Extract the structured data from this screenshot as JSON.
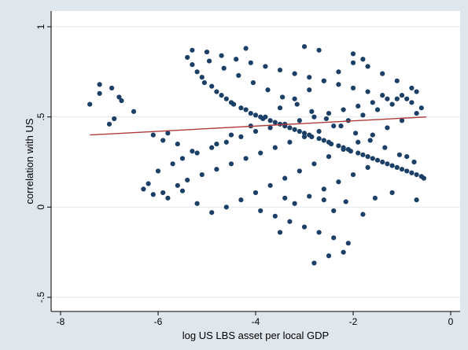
{
  "chart_data": {
    "type": "scatter",
    "title": "",
    "xlabel": "log US LBS asset per local GDP",
    "ylabel": "correlation with US",
    "xlim": [
      -8,
      0
    ],
    "ylim": [
      -0.5,
      1
    ],
    "x_ticks": [
      -8,
      -6,
      -4,
      -2,
      0
    ],
    "x_tick_labels": [
      "-8",
      "-6",
      "-4",
      "-2",
      "0"
    ],
    "y_ticks": [
      -0.5,
      0,
      0.5,
      1
    ],
    "y_tick_labels": [
      "-.5",
      "0",
      ".5",
      "1"
    ],
    "grid": "horizontal",
    "legend": "none",
    "colors": {
      "points": "#1b3f66",
      "fit_line": "#b03a3a",
      "plot_bg": "#ffffff",
      "outer_bg": "#dfe6ec",
      "grid": "#e3e9ef"
    },
    "fit_line": {
      "x": [
        -7.4,
        -0.5
      ],
      "y": [
        0.4,
        0.5
      ]
    },
    "series": [
      {
        "x": [
          -7.4,
          -7.2,
          -7.0,
          -6.9,
          -6.95,
          -6.8,
          -6.75,
          -6.5,
          -7.2,
          -6.1,
          -5.9,
          -5.8,
          -5.6,
          -5.4,
          -5.3,
          -5.2,
          -5.1,
          -5.05,
          -4.9,
          -4.8,
          -4.7,
          -4.6,
          -4.5,
          -4.45,
          -4.3,
          -4.2,
          -4.1,
          -4.0,
          -3.9,
          -3.85,
          -3.7,
          -3.6,
          -3.5,
          -3.4,
          -3.3,
          -3.2,
          -3.1,
          -3.0,
          -2.9,
          -2.85,
          -2.7,
          -2.6,
          -2.5,
          -2.45,
          -2.3,
          -2.2,
          -2.1,
          -2.05,
          -1.9,
          -1.8,
          -1.7,
          -1.6,
          -1.5,
          -1.4,
          -1.3,
          -1.2,
          -1.1,
          -1.0,
          -0.9,
          -0.8,
          -0.7,
          -0.6,
          -0.55,
          -5.2,
          -4.8,
          -4.5,
          -4.1,
          -3.8,
          -3.5,
          -3.2,
          -2.9,
          -2.6,
          -2.3,
          -2.0,
          -1.7,
          -1.4,
          -1.1,
          -0.8,
          -6.2,
          -6.0,
          -5.7,
          -5.5,
          -5.3,
          -4.9,
          -4.6,
          -4.3,
          -4.0,
          -3.7,
          -3.4,
          -3.1,
          -2.8,
          -2.5,
          -2.2,
          -1.9,
          -1.6,
          -1.3,
          -1.0,
          -0.7,
          -6.3,
          -6.1,
          -5.9,
          -5.6,
          -5.4,
          -5.1,
          -4.8,
          -4.5,
          -4.2,
          -3.9,
          -3.6,
          -3.3,
          -3.0,
          -2.7,
          -2.4,
          -2.1,
          -1.8,
          -1.5,
          -1.2,
          -0.9,
          -0.6,
          -5.0,
          -4.7,
          -4.4,
          -4.1,
          -3.8,
          -3.5,
          -3.2,
          -2.9,
          -2.6,
          -2.3,
          -2.0,
          -1.7,
          -1.4,
          -1.1,
          -0.8,
          -5.8,
          -5.5,
          -5.2,
          -4.9,
          -4.6,
          -4.3,
          -4.0,
          -3.7,
          -3.4,
          -3.1,
          -2.8,
          -2.5,
          -2.2,
          -1.9,
          -1.6,
          -1.3,
          -1.0,
          -0.7,
          -5.3,
          -4.95,
          -4.65,
          -4.35,
          -4.05,
          -3.75,
          -3.45,
          -3.15,
          -2.85,
          -2.55,
          -2.25,
          -1.95,
          -1.65,
          -1.35,
          -1.05,
          -0.75,
          -3.9,
          -3.6,
          -3.3,
          -3.0,
          -2.7,
          -2.4,
          -2.1,
          -1.8,
          -3.2,
          -2.9,
          -2.6,
          -2.3,
          -2.0,
          -1.7,
          -3.5,
          -2.8,
          -2.5,
          -2.2,
          -4.2,
          -3.0,
          -2.7,
          -2.0,
          -1.8,
          -3.4,
          -2.6,
          -2.4,
          -2.15,
          -1.55,
          -0.7,
          -1.2,
          -0.9
        ],
        "y": [
          0.57,
          0.63,
          0.46,
          0.49,
          0.66,
          0.61,
          0.59,
          0.53,
          0.68,
          0.4,
          0.37,
          0.41,
          0.35,
          0.83,
          0.79,
          0.75,
          0.72,
          0.69,
          0.67,
          0.64,
          0.62,
          0.6,
          0.58,
          0.57,
          0.55,
          0.54,
          0.52,
          0.51,
          0.5,
          0.49,
          0.48,
          0.47,
          0.46,
          0.45,
          0.44,
          0.43,
          0.42,
          0.41,
          0.4,
          0.39,
          0.38,
          0.37,
          0.36,
          0.35,
          0.34,
          0.33,
          0.32,
          0.31,
          0.3,
          0.29,
          0.28,
          0.27,
          0.26,
          0.25,
          0.24,
          0.23,
          0.22,
          0.21,
          0.2,
          0.19,
          0.18,
          0.17,
          0.16,
          0.3,
          0.35,
          0.4,
          0.45,
          0.5,
          0.55,
          0.6,
          0.65,
          0.7,
          0.75,
          0.8,
          0.78,
          0.74,
          0.7,
          0.66,
          0.13,
          0.2,
          0.24,
          0.27,
          0.31,
          0.33,
          0.36,
          0.39,
          0.42,
          0.44,
          0.46,
          0.48,
          0.5,
          0.52,
          0.54,
          0.56,
          0.58,
          0.6,
          0.62,
          0.64,
          0.1,
          0.07,
          0.08,
          0.12,
          0.15,
          0.18,
          0.21,
          0.24,
          0.27,
          0.3,
          0.33,
          0.36,
          0.39,
          0.42,
          0.45,
          0.48,
          0.51,
          0.54,
          0.57,
          0.6,
          0.55,
          0.86,
          0.84,
          0.82,
          0.8,
          0.78,
          0.76,
          0.74,
          0.72,
          0.7,
          0.68,
          0.66,
          0.64,
          0.62,
          0.6,
          0.58,
          0.05,
          0.09,
          0.02,
          -0.03,
          0.0,
          0.04,
          0.08,
          0.12,
          0.16,
          0.2,
          0.24,
          0.28,
          0.32,
          0.36,
          0.4,
          0.44,
          0.48,
          0.52,
          0.87,
          0.81,
          0.77,
          0.73,
          0.69,
          0.65,
          0.61,
          0.57,
          0.53,
          0.49,
          0.45,
          0.41,
          0.37,
          0.33,
          0.29,
          0.25,
          -0.02,
          -0.05,
          -0.08,
          -0.11,
          -0.14,
          -0.17,
          -0.2,
          -0.04,
          0.02,
          0.06,
          0.1,
          0.14,
          0.18,
          0.22,
          -0.14,
          -0.31,
          -0.27,
          -0.25,
          0.88,
          0.89,
          0.87,
          0.85,
          0.82,
          0.05,
          0.04,
          -0.02,
          0.03,
          0.05,
          0.04,
          0.08,
          0.28
        ]
      }
    ]
  }
}
